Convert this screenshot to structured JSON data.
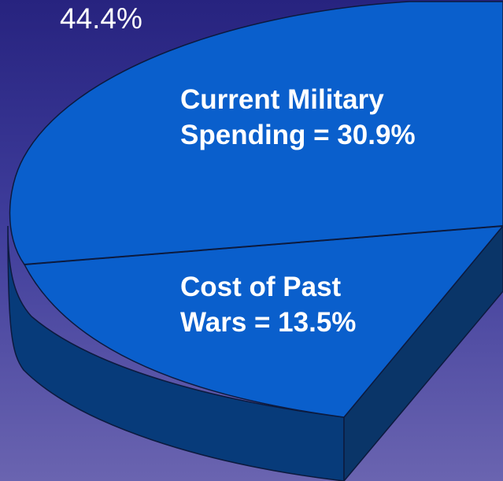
{
  "chart_data": {
    "type": "pie",
    "total_label": "44.4%",
    "slices": [
      {
        "label_line1": "Current Military",
        "label_line2": "Spending = 30.9%",
        "value": 30.9,
        "color": "#0a5fcc"
      },
      {
        "label_line1": "Cost of Past",
        "label_line2": "Wars = 13.5%",
        "value": 13.5,
        "color": "#0a5fcc"
      }
    ],
    "colors": {
      "slice_top": "#0a5fcc",
      "slice_side": "#073b7a",
      "edge": "#0c1a3e",
      "background_top": "#27237f",
      "background_bottom": "#6a64b0"
    }
  }
}
